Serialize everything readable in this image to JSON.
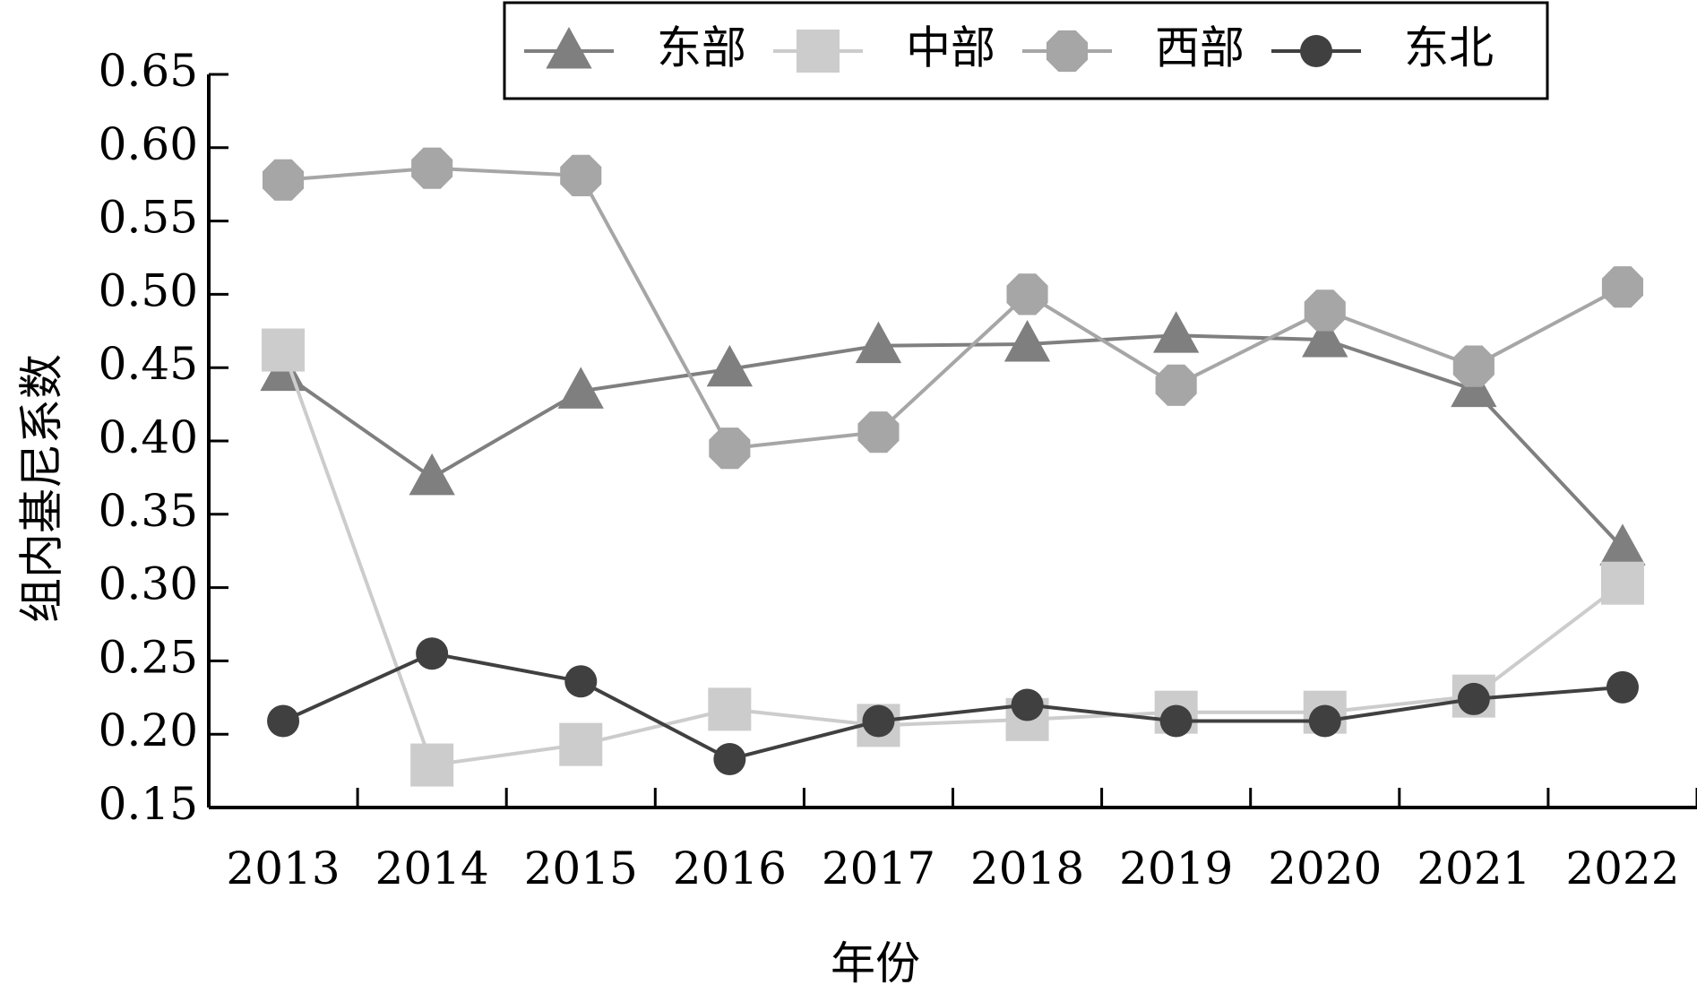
{
  "chart_data": {
    "type": "line",
    "title": "",
    "xlabel": "年份",
    "ylabel": "组内基尼系数",
    "categories": [
      "2013",
      "2014",
      "2015",
      "2016",
      "2017",
      "2018",
      "2019",
      "2020",
      "2021",
      "2022"
    ],
    "ylim": [
      0.15,
      0.65
    ],
    "yticks": [
      "0.15",
      "0.20",
      "0.25",
      "0.30",
      "0.35",
      "0.40",
      "0.45",
      "0.50",
      "0.55",
      "0.60",
      "0.65"
    ],
    "grid": false,
    "legend_position": "top",
    "series": [
      {
        "name": "东部",
        "marker": "triangle",
        "color": "#7f7f7f",
        "values": [
          0.446,
          0.375,
          0.434,
          0.449,
          0.465,
          0.466,
          0.472,
          0.469,
          0.435,
          0.327
        ]
      },
      {
        "name": "中部",
        "marker": "square",
        "color": "#cccccc",
        "values": [
          0.462,
          0.179,
          0.193,
          0.217,
          0.206,
          0.21,
          0.215,
          0.215,
          0.226,
          0.303
        ]
      },
      {
        "name": "西部",
        "marker": "octagon",
        "color": "#a6a6a6",
        "values": [
          0.578,
          0.586,
          0.581,
          0.395,
          0.406,
          0.5,
          0.438,
          0.489,
          0.451,
          0.505
        ]
      },
      {
        "name": "东北",
        "marker": "circle",
        "color": "#404040",
        "values": [
          0.209,
          0.255,
          0.236,
          0.183,
          0.209,
          0.22,
          0.209,
          0.209,
          0.224,
          0.232
        ]
      }
    ]
  }
}
